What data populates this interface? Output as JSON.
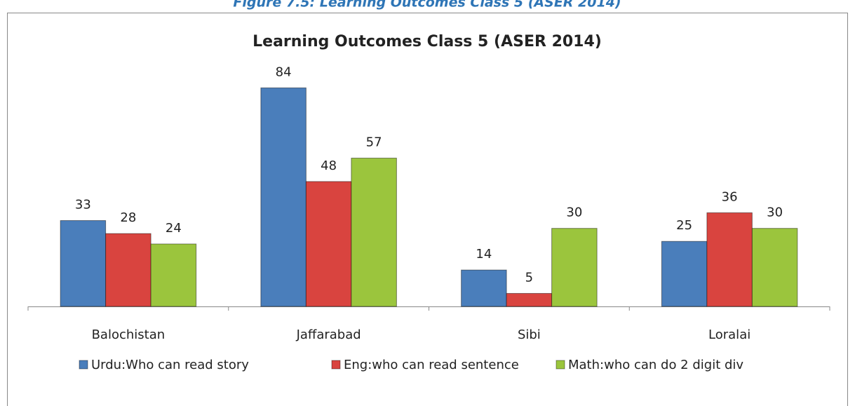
{
  "caption": "Figure 7.5: Learning Outcomes Class 5 (ASER 2014)",
  "chart_data": {
    "type": "bar",
    "title": "Learning Outcomes Class 5 (ASER 2014)",
    "categories": [
      "Balochistan",
      "Jaffarabad",
      "Sibi",
      "Loralai"
    ],
    "series": [
      {
        "name": "Urdu:Who can read story",
        "color": "#4a7ebb",
        "values": [
          33,
          84,
          14,
          25
        ]
      },
      {
        "name": "Eng:who can read sentence",
        "color": "#d9443f",
        "values": [
          28,
          48,
          5,
          36
        ]
      },
      {
        "name": "Math:who can do 2 digit div",
        "color": "#9bc53d",
        "values": [
          24,
          57,
          30,
          30
        ]
      }
    ],
    "ylim": [
      0,
      90
    ],
    "legend": "bottom"
  }
}
